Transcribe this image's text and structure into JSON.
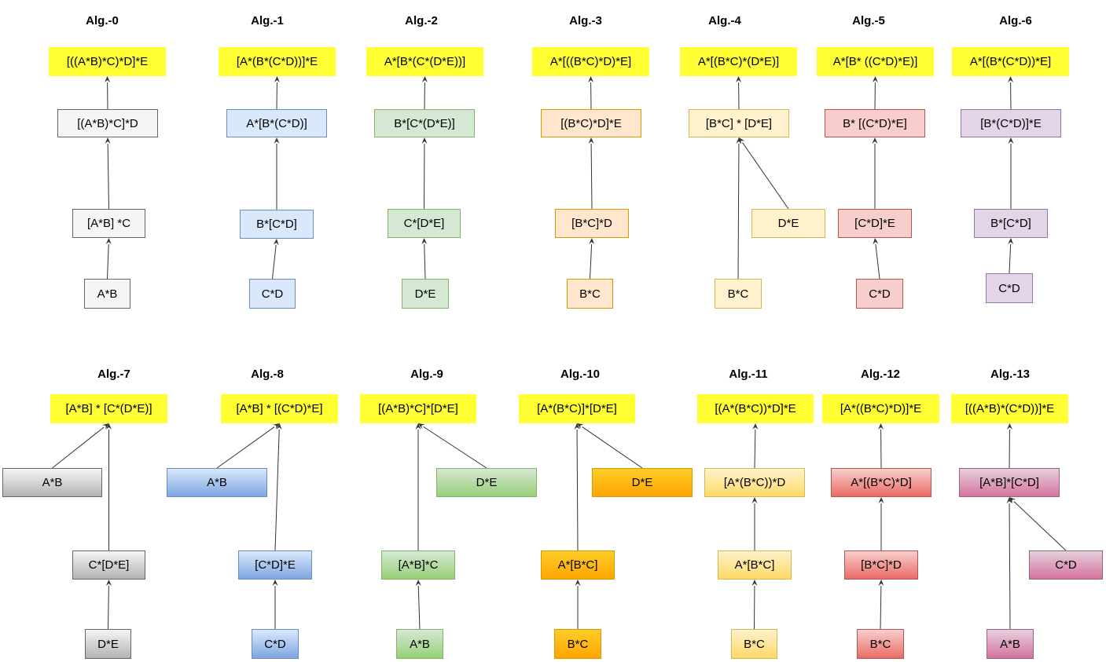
{
  "algorithms": [
    {
      "title": "Alg.-0",
      "style": "plain",
      "nodes": [
        "[((A*B)*C)*D]*E",
        "[(A*B)*C]*D",
        "[A*B] *C",
        "A*B"
      ]
    },
    {
      "title": "Alg.-1",
      "style": "plain",
      "nodes": [
        "[A*(B*(C*D))]*E",
        "A*[B*(C*D)]",
        "B*[C*D]",
        "C*D"
      ]
    },
    {
      "title": "Alg.-2",
      "style": "plain",
      "nodes": [
        "A*[B*(C*(D*E))]",
        "B*[C*(D*E)]",
        "C*[D*E]",
        "D*E"
      ]
    },
    {
      "title": "Alg.-3",
      "style": "plain",
      "nodes": [
        "A*[((B*C)*D)*E]",
        "[(B*C)*D]*E",
        "[B*C]*D",
        "B*C"
      ]
    },
    {
      "title": "Alg.-4",
      "style": "plain",
      "nodes": [
        "A*[(B*C)*(D*E)]",
        "[B*C] * [D*E]",
        "D*E",
        "B*C"
      ]
    },
    {
      "title": "Alg.-5",
      "style": "plain",
      "nodes": [
        "A*[B* ((C*D)*E)]",
        "B* [(C*D)*E]",
        "[C*D]*E",
        "C*D"
      ]
    },
    {
      "title": "Alg.-6",
      "style": "plain",
      "nodes": [
        "A*[(B*(C*D))*E]",
        "[B*(C*D)]*E",
        "B*[C*D]",
        "C*D"
      ]
    },
    {
      "title": "Alg.-7",
      "style": "gradient",
      "nodes": [
        "[A*B] * [C*(D*E)]",
        "A*B",
        "C*[D*E]",
        "D*E"
      ]
    },
    {
      "title": "Alg.-8",
      "style": "gradient",
      "nodes": [
        "[A*B] * [(C*D)*E]",
        "A*B",
        "[C*D]*E",
        "C*D"
      ]
    },
    {
      "title": "Alg.-9",
      "style": "gradient",
      "nodes": [
        "[(A*B)*C]*[D*E]",
        "D*E",
        "[A*B]*C",
        "A*B"
      ]
    },
    {
      "title": "Alg.-10",
      "style": "gradient",
      "nodes": [
        "[A*(B*C)]*[D*E]",
        "D*E",
        "A*[B*C]",
        "B*C"
      ]
    },
    {
      "title": "Alg.-11",
      "style": "gradient",
      "nodes": [
        "[(A*(B*C))*D]*E",
        "[A*(B*C))*D",
        "A*[B*C]",
        "B*C"
      ]
    },
    {
      "title": "Alg.-12",
      "style": "gradient",
      "nodes": [
        "[A*((B*C)*D)]*E",
        "A*[(B*C)*D]",
        "[B*C]*D",
        "B*C"
      ]
    },
    {
      "title": "Alg.-13",
      "style": "gradient",
      "nodes": [
        "[((A*B)*(C*D))]*E",
        "[A*B]*[C*D]",
        "C*D",
        "A*B"
      ]
    }
  ],
  "colors": {
    "result_fill": "#ffff33",
    "arrow": "#333333",
    "palettes": [
      {
        "fill": "#f5f5f5",
        "stroke": "#666666"
      },
      {
        "fill": "#dae8fc",
        "stroke": "#6c8ebf"
      },
      {
        "fill": "#d5e8d4",
        "stroke": "#82b366"
      },
      {
        "fill": "#ffe6cc",
        "stroke": "#d79b00"
      },
      {
        "fill": "#fff2cc",
        "stroke": "#d6b656"
      },
      {
        "fill": "#f8cecc",
        "stroke": "#b85450"
      },
      {
        "fill": "#e1d5e7",
        "stroke": "#9673a6"
      },
      {
        "grad": [
          "#f5f5f5",
          "#b3b3b3"
        ],
        "stroke": "#666666"
      },
      {
        "grad": [
          "#dae8fc",
          "#7ea6e0"
        ],
        "stroke": "#6c8ebf"
      },
      {
        "grad": [
          "#d5e8d4",
          "#97d077"
        ],
        "stroke": "#82b366"
      },
      {
        "grad": [
          "#ffcd28",
          "#ffa500"
        ],
        "stroke": "#d79b00"
      },
      {
        "grad": [
          "#fff2cc",
          "#ffd966"
        ],
        "stroke": "#d6b656"
      },
      {
        "grad": [
          "#f8cecc",
          "#ea6b66"
        ],
        "stroke": "#b85450"
      },
      {
        "grad": [
          "#e6d0de",
          "#d5739d"
        ],
        "stroke": "#996185"
      }
    ]
  }
}
